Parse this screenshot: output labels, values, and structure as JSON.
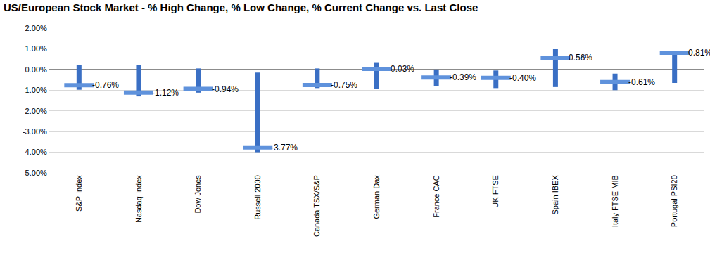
{
  "chart_data": {
    "type": "range",
    "title": "US/European Stock Market - % High Change, % Low Change, % Current Change vs. Last Close",
    "categories": [
      "S&P Index",
      "Nasdaq Index",
      "Dow Jones",
      "Russell 2000",
      "Canada TSX/S&P",
      "German Dax",
      "France CAC",
      "UK FTSE",
      "Spain IBEX",
      "Italy FTSE MIB",
      "Portugal PSI20"
    ],
    "high": [
      0.22,
      0.2,
      0.05,
      -0.15,
      0.05,
      0.35,
      0.0,
      -0.05,
      1.0,
      -0.2,
      0.85
    ],
    "low": [
      -0.98,
      -1.3,
      -1.12,
      -4.0,
      -0.9,
      -0.95,
      -0.8,
      -0.9,
      -0.85,
      -1.0,
      -0.65
    ],
    "values": [
      -0.76,
      -1.12,
      -0.94,
      -3.77,
      -0.75,
      0.03,
      -0.39,
      -0.4,
      0.56,
      -0.61,
      0.81
    ],
    "value_labels": [
      "-0.76%",
      "-1.12%",
      "-0.94%",
      "-3.77%",
      "-0.75%",
      "0.03%",
      "-0.39%",
      "-0.40%",
      "0.56%",
      "-0.61%",
      "0.81%"
    ],
    "data_labels": true,
    "color": "#3a6fc4",
    "ylim": [
      -5,
      2
    ],
    "yticks": [
      {
        "value": -5,
        "label": "-5.00%"
      },
      {
        "value": -4,
        "label": "-4.00%"
      },
      {
        "value": -3,
        "label": "-3.00%"
      },
      {
        "value": -2,
        "label": "-2.00%"
      },
      {
        "value": -1,
        "label": "-1.00%"
      },
      {
        "value": 0,
        "label": "0.00%"
      },
      {
        "value": 1,
        "label": "1.00%"
      },
      {
        "value": 2,
        "label": "2.00%"
      }
    ],
    "grid": true
  }
}
